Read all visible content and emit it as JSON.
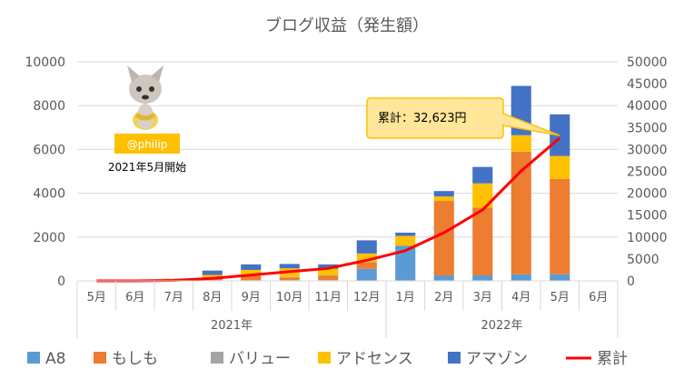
{
  "chart_data": {
    "type": "bar",
    "stacked": true,
    "title": "ブログ収益（発生額）",
    "categories": [
      "5月",
      "6月",
      "7月",
      "8月",
      "9月",
      "10月",
      "11月",
      "12月",
      "1月",
      "2月",
      "3月",
      "4月",
      "5月",
      "6月"
    ],
    "groups": [
      {
        "label": "2021年",
        "from": 0,
        "to": 7
      },
      {
        "label": "2022年",
        "from": 8,
        "to": 13
      }
    ],
    "y_left": {
      "min": 0,
      "max": 10000,
      "step": 2000,
      "ticks": [
        "0",
        "2000",
        "4000",
        "6000",
        "8000",
        "10000"
      ]
    },
    "y_right": {
      "min": 0,
      "max": 50000,
      "step": 5000,
      "ticks": [
        "0",
        "5000",
        "10000",
        "15000",
        "20000",
        "25000",
        "30000",
        "35000",
        "40000",
        "45000",
        "50000"
      ]
    },
    "series": [
      {
        "name": "A8",
        "color": "#5B9BD5",
        "axis": "left",
        "values": [
          0,
          0,
          0,
          30,
          30,
          30,
          30,
          550,
          1600,
          250,
          250,
          300,
          300,
          null
        ]
      },
      {
        "name": "もしも",
        "color": "#ED7D31",
        "axis": "left",
        "values": [
          0,
          0,
          0,
          120,
          200,
          120,
          200,
          280,
          0,
          3400,
          3100,
          5600,
          4350,
          null
        ]
      },
      {
        "name": "バリュー",
        "color": "#A5A5A5",
        "axis": "left",
        "values": [
          0,
          0,
          0,
          20,
          20,
          20,
          20,
          20,
          0,
          0,
          0,
          0,
          0,
          null
        ]
      },
      {
        "name": "アドセンス",
        "color": "#FFC000",
        "axis": "left",
        "values": [
          0,
          0,
          100,
          100,
          250,
          400,
          300,
          400,
          450,
          200,
          1100,
          750,
          1050,
          null
        ]
      },
      {
        "name": "アマゾン",
        "color": "#4472C4",
        "axis": "left",
        "values": [
          0,
          0,
          0,
          200,
          250,
          200,
          200,
          600,
          150,
          250,
          750,
          2250,
          1900,
          null
        ]
      },
      {
        "name": "累計",
        "color": "#FF0000",
        "axis": "right",
        "kind": "line",
        "values": [
          0,
          0,
          100,
          570,
          1320,
          2090,
          2840,
          4690,
          6890,
          10990,
          16190,
          25090,
          32623,
          null
        ]
      }
    ],
    "grid": true,
    "legend_position": "bottom",
    "annotations": {
      "callout": "累計：32,623円",
      "badge": "@philip",
      "start_note": "2021年5月開始"
    }
  }
}
